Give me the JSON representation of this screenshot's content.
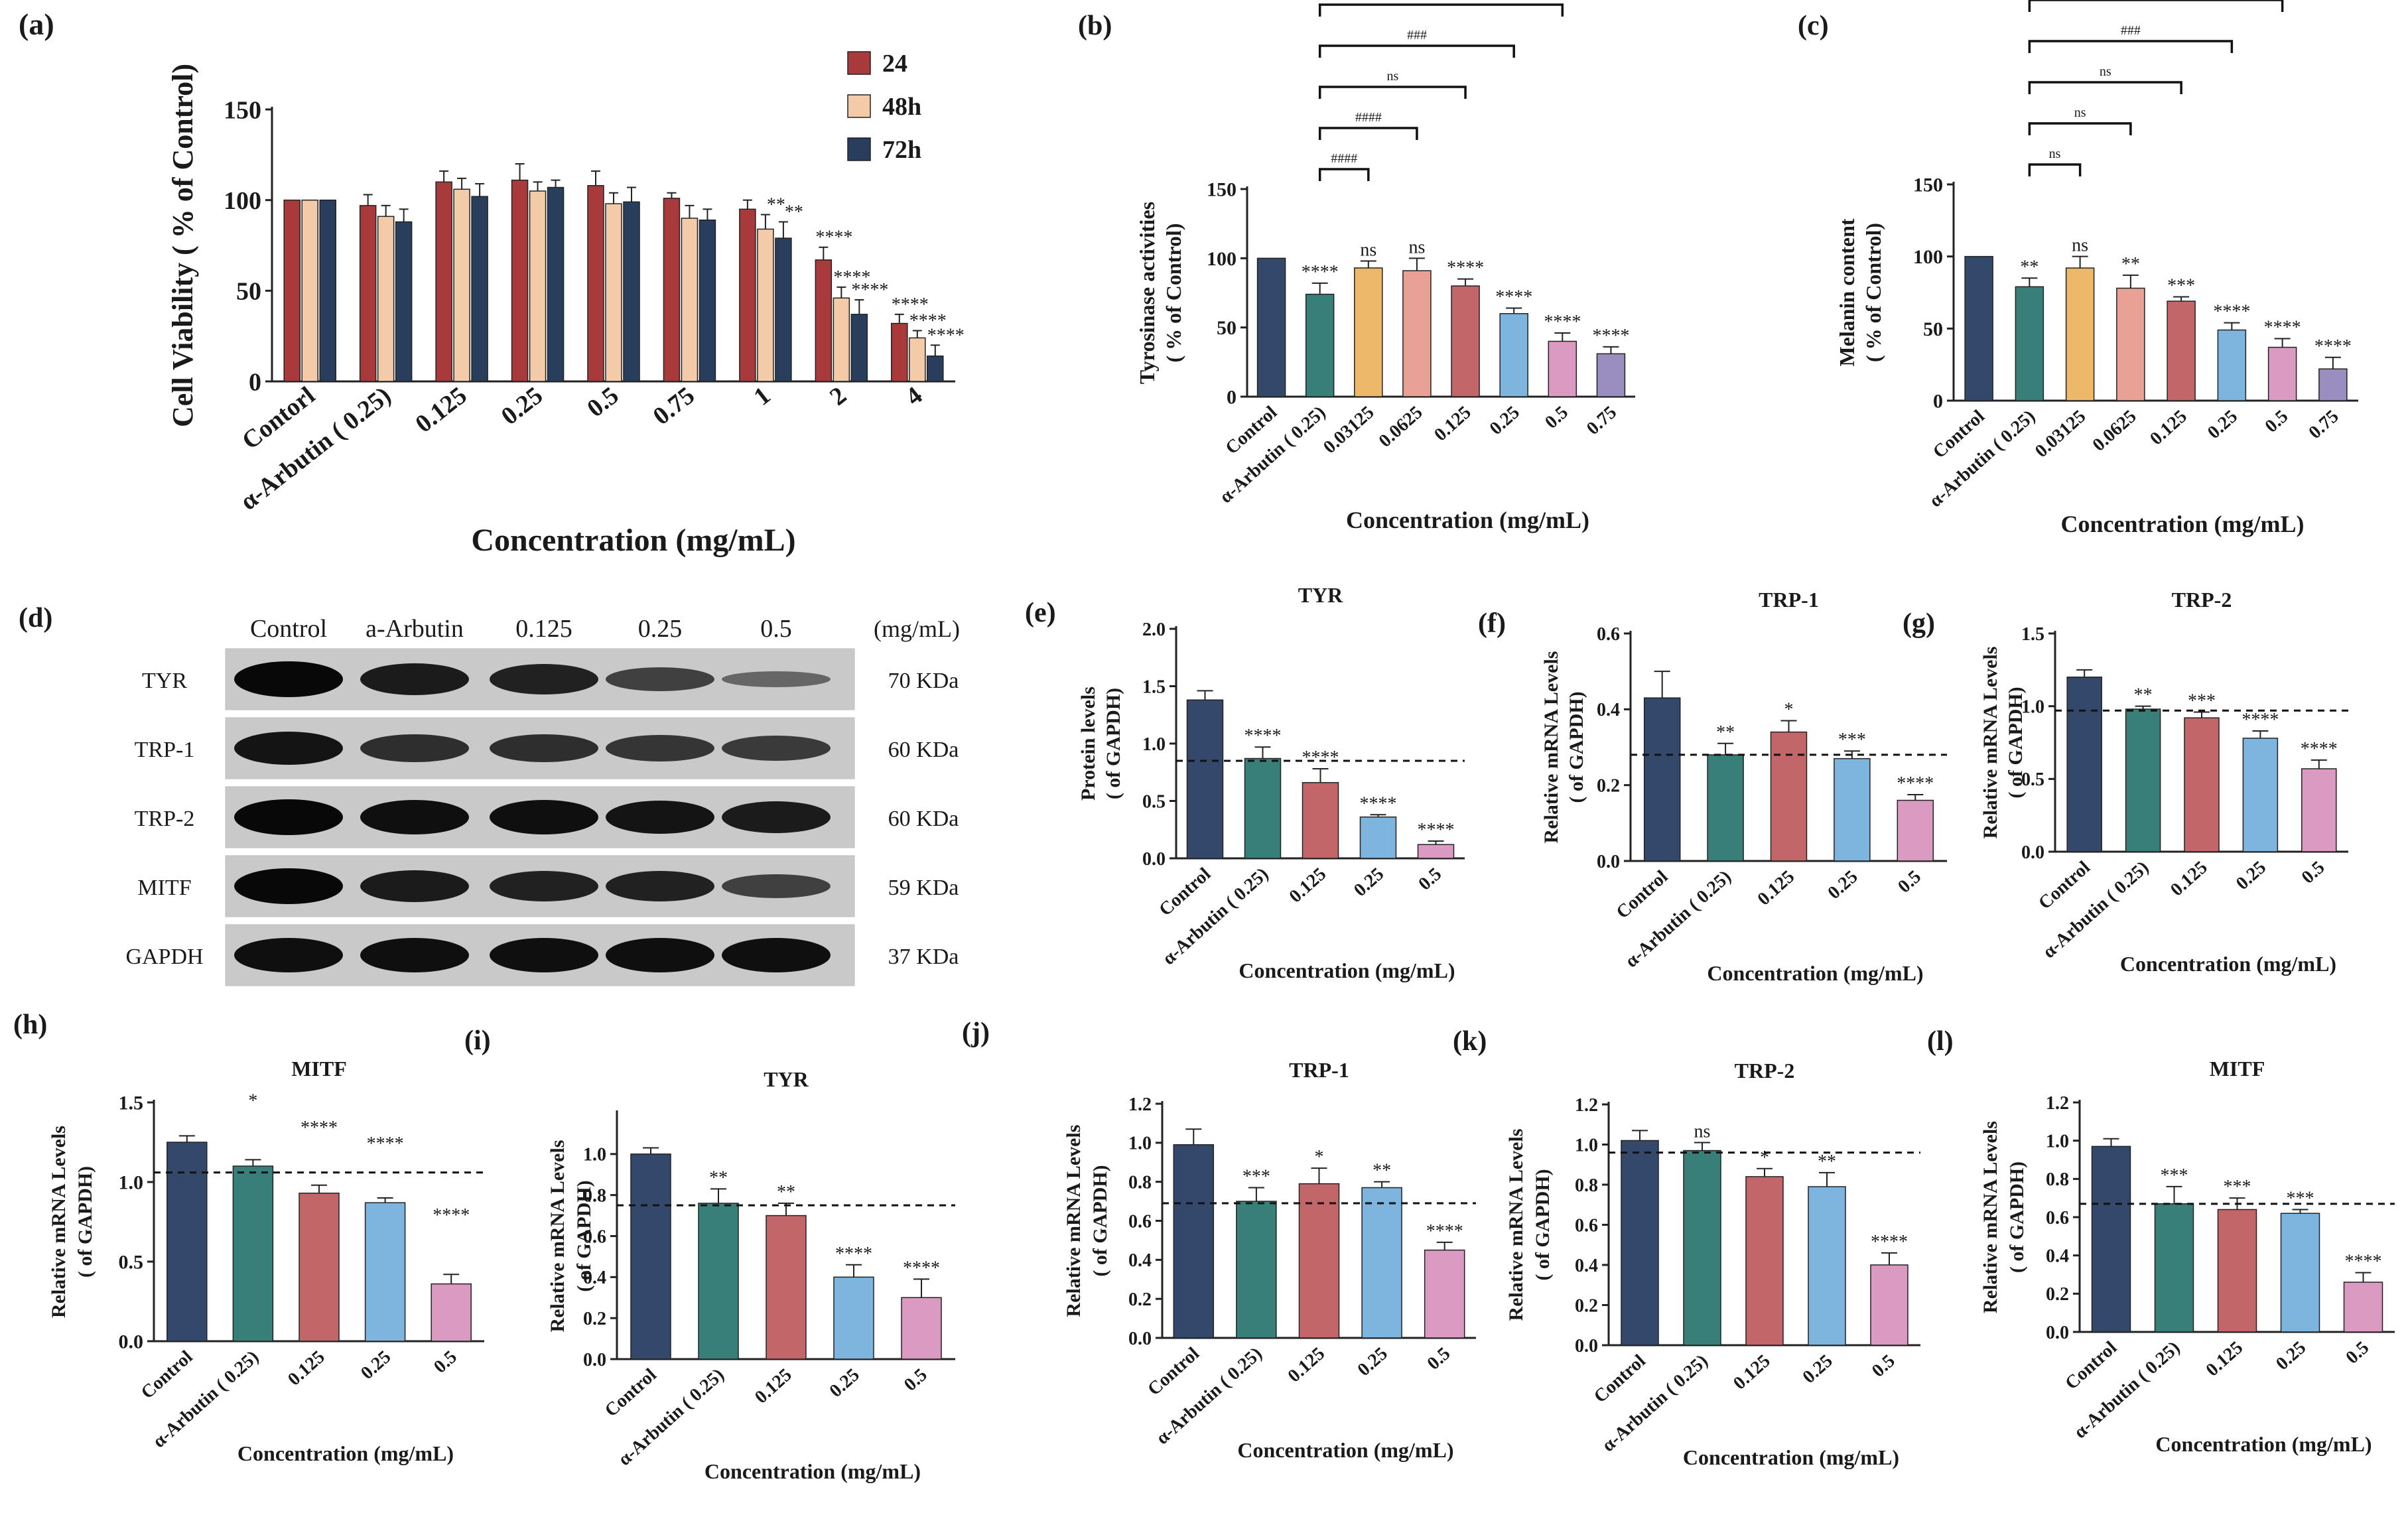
{
  "figure": {
    "colors": {
      "c_control": "#34486b",
      "c_arbutin": "#377f78",
      "c_yellow": "#edb86a",
      "c_salmon": "#e9a196",
      "c_red": "#c2666a",
      "c_blue": "#7db5df",
      "c_pink": "#da9ac1",
      "c_purple": "#9a8dbf",
      "c_24": "#a83a3c",
      "c_48": "#f4cba8",
      "c_72": "#283e5c"
    }
  },
  "western_blot": {
    "panel_label": "(d)",
    "lane_labels": [
      "Control",
      "a-Arbutin",
      "0.125",
      "0.25",
      "0.5"
    ],
    "unit_label": "(mg/mL)",
    "rows": [
      {
        "protein": "TYR",
        "weight": "70 KDa",
        "intensity": [
          1.0,
          0.85,
          0.8,
          0.55,
          0.25
        ]
      },
      {
        "protein": "TRP-1",
        "weight": "60 KDa",
        "intensity": [
          0.9,
          0.7,
          0.7,
          0.65,
          0.6
        ]
      },
      {
        "protein": "TRP-2",
        "weight": "60 KDa",
        "intensity": [
          1.0,
          0.95,
          0.95,
          0.9,
          0.85
        ]
      },
      {
        "protein": "MITF",
        "weight": "59 KDa",
        "intensity": [
          1.0,
          0.85,
          0.8,
          0.8,
          0.55
        ]
      },
      {
        "protein": "GAPDH",
        "weight": "37 KDa",
        "intensity": [
          0.95,
          0.95,
          0.95,
          0.95,
          0.95
        ]
      }
    ]
  },
  "chart_data": [
    {
      "id": "a",
      "panel_label": "(a)",
      "type": "bar",
      "title": "",
      "xlabel": "Concentration (mg/mL)",
      "ylabel": "Cell Viability ( % of Control)",
      "ylim": [
        0,
        150
      ],
      "yticks": [
        0,
        50,
        100,
        150
      ],
      "categories": [
        "Contorl",
        "α-Arbutin ( 0.25)",
        "0.125",
        "0.25",
        "0.5",
        "0.75",
        "1",
        "2",
        "4"
      ],
      "series": [
        {
          "name": "24",
          "color_key": "c_24",
          "values": [
            100,
            97,
            110,
            111,
            108,
            101,
            95,
            67,
            32
          ],
          "err": [
            0,
            6,
            6,
            9,
            8,
            3,
            5,
            7,
            5
          ],
          "stars": [
            "",
            "",
            "",
            "",
            "",
            "",
            "",
            "****",
            "****"
          ]
        },
        {
          "name": "48h",
          "color_key": "c_48",
          "values": [
            100,
            91,
            106,
            105,
            98,
            90,
            84,
            46,
            24
          ],
          "err": [
            0,
            6,
            6,
            5,
            6,
            7,
            8,
            6,
            4
          ],
          "stars": [
            "",
            "",
            "",
            "",
            "",
            "",
            "**",
            "****",
            "****"
          ]
        },
        {
          "name": "72h",
          "color_key": "c_72",
          "values": [
            100,
            88,
            102,
            107,
            99,
            89,
            79,
            37,
            14
          ],
          "err": [
            0,
            7,
            7,
            4,
            8,
            6,
            9,
            8,
            6
          ],
          "stars": [
            "",
            "",
            "",
            "",
            "",
            "",
            "**",
            "****",
            "****"
          ]
        }
      ],
      "legend": "top-right"
    },
    {
      "id": "b",
      "panel_label": "(b)",
      "type": "bar",
      "title": "",
      "xlabel": "Concentration (mg/mL)",
      "ylabel": "Tyrosinase activities",
      "ylabel2": "( % of Control)",
      "ylim": [
        0,
        150
      ],
      "yticks": [
        0,
        50,
        100,
        150
      ],
      "categories": [
        "Control",
        "α-Arbutin ( 0.25)",
        "0.03125",
        "0.0625",
        "0.125",
        "0.25",
        "0.5",
        "0.75"
      ],
      "values": [
        100,
        74,
        93,
        91,
        80,
        60,
        40,
        31
      ],
      "err": [
        0,
        8,
        5,
        9,
        5,
        4,
        6,
        5
      ],
      "stars": [
        "",
        "****",
        "ns",
        "ns",
        "****",
        "****",
        "****",
        "****"
      ],
      "color_keys": [
        "c_control",
        "c_arbutin",
        "c_yellow",
        "c_salmon",
        "c_red",
        "c_blue",
        "c_pink",
        "c_purple"
      ],
      "brackets": [
        {
          "from": 1,
          "to": 2,
          "label": "####"
        },
        {
          "from": 1,
          "to": 3,
          "label": "####"
        },
        {
          "from": 1,
          "to": 4,
          "label": "ns"
        },
        {
          "from": 1,
          "to": 5,
          "label": "###"
        },
        {
          "from": 1,
          "to": 6,
          "label": "####"
        },
        {
          "from": 1,
          "to": 7,
          "label": "####"
        }
      ]
    },
    {
      "id": "c",
      "panel_label": "(c)",
      "type": "bar",
      "title": "",
      "xlabel": "Concentration (mg/mL)",
      "ylabel": "Melanin content",
      "ylabel2": "( % of Control)",
      "ylim": [
        0,
        150
      ],
      "yticks": [
        0,
        50,
        100,
        150
      ],
      "categories": [
        "Control",
        "α-Arbutin ( 0.25)",
        "0.03125",
        "0.0625",
        "0.125",
        "0.25",
        "0.5",
        "0.75"
      ],
      "values": [
        100,
        79,
        92,
        78,
        69,
        49,
        37,
        22
      ],
      "err": [
        0,
        6,
        8,
        9,
        3,
        5,
        6,
        8
      ],
      "stars": [
        "",
        "**",
        "ns",
        "**",
        "***",
        "****",
        "****",
        "****"
      ],
      "color_keys": [
        "c_control",
        "c_arbutin",
        "c_yellow",
        "c_salmon",
        "c_red",
        "c_blue",
        "c_pink",
        "c_purple"
      ],
      "brackets": [
        {
          "from": 1,
          "to": 2,
          "label": "ns"
        },
        {
          "from": 1,
          "to": 3,
          "label": "ns"
        },
        {
          "from": 1,
          "to": 4,
          "label": "ns"
        },
        {
          "from": 1,
          "to": 5,
          "label": "###"
        },
        {
          "from": 1,
          "to": 6,
          "label": "####"
        },
        {
          "from": 1,
          "to": 7,
          "label": "####"
        }
      ]
    },
    {
      "id": "e",
      "panel_label": "(e)",
      "type": "bar",
      "title": "TYR",
      "xlabel": "Concentration (mg/mL)",
      "ylabel": "Protein levels",
      "ylabel2": "( of GAPDH)",
      "ylim": [
        0,
        2.0
      ],
      "yticks": [
        0,
        0.5,
        1.0,
        1.5,
        2.0
      ],
      "tick_decimals": 1,
      "categories": [
        "Control",
        "α-Arbutin ( 0.25)",
        "0.125",
        "0.25",
        "0.5"
      ],
      "values": [
        1.38,
        0.87,
        0.66,
        0.36,
        0.12
      ],
      "err": [
        0.08,
        0.1,
        0.12,
        0.02,
        0.03
      ],
      "stars": [
        "",
        "****",
        "****",
        "****",
        "****"
      ],
      "color_keys": [
        "c_control",
        "c_arbutin",
        "c_red",
        "c_blue",
        "c_pink"
      ],
      "dashed": 0.85
    },
    {
      "id": "f",
      "panel_label": "(f)",
      "type": "bar",
      "title": "TRP-1",
      "xlabel": "Concentration (mg/mL)",
      "ylabel": "Relative mRNA Levels",
      "ylabel2": "( of GAPDH)",
      "ylim": [
        0,
        0.6
      ],
      "yticks": [
        0,
        0.2,
        0.4,
        0.6
      ],
      "tick_decimals": 1,
      "categories": [
        "Control",
        "α-Arbutin ( 0.25)",
        "0.125",
        "0.25",
        "0.5"
      ],
      "values": [
        0.43,
        0.28,
        0.34,
        0.27,
        0.16
      ],
      "err": [
        0.07,
        0.03,
        0.03,
        0.02,
        0.015
      ],
      "stars": [
        "",
        "**",
        "*",
        "***",
        "****"
      ],
      "color_keys": [
        "c_control",
        "c_arbutin",
        "c_red",
        "c_blue",
        "c_pink"
      ],
      "dashed": 0.28
    },
    {
      "id": "g",
      "panel_label": "(g)",
      "type": "bar",
      "title": "TRP-2",
      "xlabel": "Concentration (mg/mL)",
      "ylabel": "Relative mRNA Levels",
      "ylabel2": "( of GAPDH)",
      "ylim": [
        0,
        1.5
      ],
      "yticks": [
        0,
        0.5,
        1.0,
        1.5
      ],
      "tick_decimals": 1,
      "categories": [
        "Control",
        "α-Arbutin ( 0.25)",
        "0.125",
        "0.25",
        "0.5"
      ],
      "values": [
        1.2,
        0.98,
        0.92,
        0.78,
        0.57
      ],
      "err": [
        0.05,
        0.02,
        0.04,
        0.05,
        0.06
      ],
      "stars": [
        "",
        "**",
        "***",
        "****",
        "****"
      ],
      "color_keys": [
        "c_control",
        "c_arbutin",
        "c_red",
        "c_blue",
        "c_pink"
      ],
      "dashed": 0.97
    },
    {
      "id": "h",
      "panel_label": "(h)",
      "type": "bar",
      "title": "MITF",
      "xlabel": "Concentration (mg/mL)",
      "ylabel": "Relative mRNA Levels",
      "ylabel2": "( of GAPDH)",
      "ylim": [
        0,
        1.5
      ],
      "yticks": [
        0,
        0.5,
        1.0,
        1.5
      ],
      "tick_decimals": 1,
      "categories": [
        "Control",
        "α-Arbutin ( 0.25)",
        "0.125",
        "0.25",
        "0.5"
      ],
      "values": [
        1.25,
        1.1,
        0.93,
        0.87,
        0.36
      ],
      "err": [
        0.04,
        0.04,
        0.05,
        0.03,
        0.06
      ],
      "stars": [
        "",
        "*",
        "****",
        "****",
        "****"
      ],
      "star_offsets": [
        0,
        0.3,
        0.29,
        0.27,
        0.3
      ],
      "color_keys": [
        "c_control",
        "c_arbutin",
        "c_red",
        "c_blue",
        "c_pink"
      ],
      "dashed": 1.06
    },
    {
      "id": "i",
      "panel_label": "(i)",
      "type": "bar",
      "title": "TYR",
      "xlabel": "Concentration (mg/mL)",
      "ylabel": "Relative mRNA Levels",
      "ylabel2": "( of GAPDH)",
      "ylim": [
        0,
        1.2
      ],
      "yticks": [
        0,
        0.2,
        0.4,
        0.6,
        0.8,
        1.0
      ],
      "tick_decimals": 1,
      "categories": [
        "Control",
        "α-Arbutin ( 0.25)",
        "0.125",
        "0.25",
        "0.5"
      ],
      "values": [
        1.0,
        0.76,
        0.7,
        0.4,
        0.3
      ],
      "err": [
        0.03,
        0.07,
        0.06,
        0.06,
        0.09
      ],
      "stars": [
        "",
        "**",
        "**",
        "****",
        "****"
      ],
      "color_keys": [
        "c_control",
        "c_arbutin",
        "c_red",
        "c_blue",
        "c_pink"
      ],
      "dashed": 0.75
    },
    {
      "id": "j",
      "panel_label": "(j)",
      "type": "bar",
      "title": "TRP-1",
      "xlabel": "Concentration (mg/mL)",
      "ylabel": "Relative mRNA Levels",
      "ylabel2": "( of GAPDH)",
      "ylim": [
        0,
        1.2
      ],
      "yticks": [
        0,
        0.2,
        0.4,
        0.6,
        0.8,
        1.0,
        1.2
      ],
      "tick_decimals": 1,
      "categories": [
        "Control",
        "α-Arbutin ( 0.25)",
        "0.125",
        "0.25",
        "0.5"
      ],
      "values": [
        0.99,
        0.7,
        0.79,
        0.77,
        0.45
      ],
      "err": [
        0.08,
        0.07,
        0.08,
        0.03,
        0.04
      ],
      "stars": [
        "",
        "***",
        "*",
        "**",
        "****"
      ],
      "color_keys": [
        "c_control",
        "c_arbutin",
        "c_red",
        "c_blue",
        "c_pink"
      ],
      "dashed": 0.69
    },
    {
      "id": "k",
      "panel_label": "(k)",
      "type": "bar",
      "title": "TRP-2",
      "xlabel": "Concentration (mg/mL)",
      "ylabel": "Relative mRNA Levels",
      "ylabel2": "( of GAPDH)",
      "ylim": [
        0,
        1.2
      ],
      "yticks": [
        0,
        0.2,
        0.4,
        0.6,
        0.8,
        1.0,
        1.2
      ],
      "tick_decimals": 1,
      "categories": [
        "Control",
        "α-Arbutin ( 0.25)",
        "0.125",
        "0.25",
        "0.5"
      ],
      "values": [
        1.02,
        0.97,
        0.84,
        0.79,
        0.4
      ],
      "err": [
        0.05,
        0.04,
        0.04,
        0.07,
        0.06
      ],
      "stars": [
        "",
        "ns",
        "*",
        "**",
        "****"
      ],
      "color_keys": [
        "c_control",
        "c_arbutin",
        "c_red",
        "c_blue",
        "c_pink"
      ],
      "dashed": 0.96
    },
    {
      "id": "l",
      "panel_label": "(l)",
      "type": "bar",
      "title": "MITF",
      "xlabel": "Concentration (mg/mL)",
      "ylabel": "Relative mRNA Levels",
      "ylabel2": "( of GAPDH)",
      "ylim": [
        0,
        1.2
      ],
      "yticks": [
        0,
        0.2,
        0.4,
        0.6,
        0.8,
        1.0,
        1.2
      ],
      "tick_decimals": 1,
      "categories": [
        "Control",
        "α-Arbutin ( 0.25)",
        "0.125",
        "0.25",
        "0.5"
      ],
      "values": [
        0.97,
        0.67,
        0.64,
        0.62,
        0.26
      ],
      "err": [
        0.04,
        0.09,
        0.06,
        0.02,
        0.05
      ],
      "stars": [
        "",
        "***",
        "***",
        "***",
        "****"
      ],
      "color_keys": [
        "c_control",
        "c_arbutin",
        "c_red",
        "c_blue",
        "c_pink"
      ],
      "dashed": 0.67
    }
  ]
}
